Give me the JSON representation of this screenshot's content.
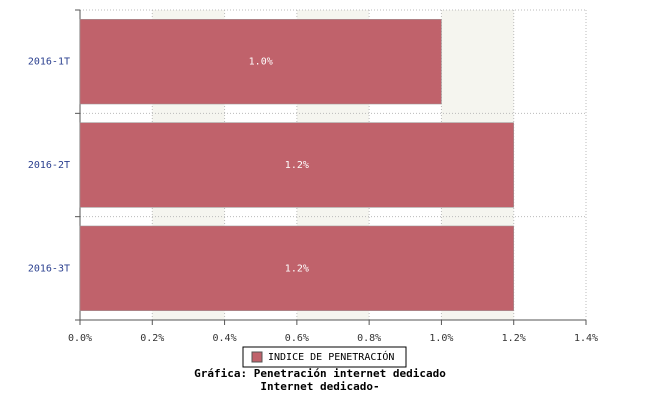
{
  "chart_data": {
    "type": "bar",
    "orientation": "horizontal",
    "title": "Gráfica: Penetración internet dedicado",
    "subtitle": "Internet dedicado-",
    "categories": [
      "2016-1T",
      "2016-2T",
      "2016-3T"
    ],
    "series": [
      {
        "name": "INDICE DE PENETRACIÓN",
        "color": "#c0626b",
        "values": [
          1.0,
          1.2,
          1.2
        ],
        "value_labels": [
          "1.0%",
          "1.2%",
          "1.2%"
        ]
      }
    ],
    "xlim": [
      0,
      1.4
    ],
    "xticks": [
      {
        "value": 0,
        "label": "0.0%"
      },
      {
        "value": 0.2,
        "label": "0.2%"
      },
      {
        "value": 0.4,
        "label": "0.4%"
      },
      {
        "value": 0.6,
        "label": "0.6%"
      },
      {
        "value": 0.8,
        "label": "0.8%"
      },
      {
        "value": 1.0,
        "label": "1.0%"
      },
      {
        "value": 1.2,
        "label": "1.2%"
      },
      {
        "value": 1.4,
        "label": "1.4%"
      }
    ],
    "grid": true,
    "legend": "bottom"
  }
}
